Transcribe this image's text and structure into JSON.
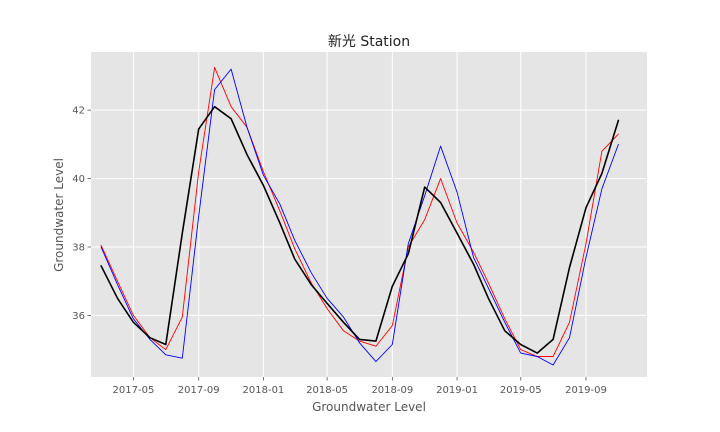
{
  "chart_data": {
    "type": "line",
    "title": "新光 Station",
    "xlabel": "Groundwater Level",
    "ylabel": "Groundwater Level",
    "x": [
      "2017-03",
      "2017-04",
      "2017-05",
      "2017-06",
      "2017-07",
      "2017-08",
      "2017-09",
      "2017-10",
      "2017-11",
      "2017-12",
      "2018-01",
      "2018-02",
      "2018-03",
      "2018-04",
      "2018-05",
      "2018-06",
      "2018-07",
      "2018-08",
      "2018-09",
      "2018-10",
      "2018-11",
      "2018-12",
      "2019-01",
      "2019-02",
      "2019-03",
      "2019-04",
      "2019-05",
      "2019-06",
      "2019-07",
      "2019-08",
      "2019-09",
      "2019-10",
      "2019-11"
    ],
    "xlim": [
      "2017-02-10",
      "2019-12-25"
    ],
    "ylim": [
      34.2,
      43.7
    ],
    "xticks": [
      "2017-05",
      "2017-09",
      "2018-01",
      "2018-05",
      "2018-09",
      "2019-01",
      "2019-05",
      "2019-09"
    ],
    "yticks": [
      36,
      38,
      40,
      42
    ],
    "grid": true,
    "legend": "none",
    "series": [
      {
        "color": "#ff0000",
        "width": 0.9,
        "values": [
          38.05,
          37.0,
          36.0,
          35.35,
          35.0,
          35.95,
          40.2,
          43.25,
          42.1,
          41.5,
          40.2,
          39.05,
          37.95,
          36.95,
          36.2,
          35.55,
          35.25,
          35.1,
          35.7,
          38.0,
          38.8,
          40.0,
          38.7,
          37.85,
          36.95,
          35.9,
          35.0,
          34.8,
          34.8,
          35.8,
          38.1,
          40.8,
          41.3
        ]
      },
      {
        "color": "#0000ff",
        "width": 0.9,
        "values": [
          38.0,
          36.9,
          35.9,
          35.3,
          34.85,
          34.75,
          38.9,
          42.6,
          43.2,
          41.5,
          40.1,
          39.25,
          38.2,
          37.25,
          36.5,
          35.95,
          35.2,
          34.65,
          35.15,
          38.1,
          39.5,
          40.95,
          39.6,
          37.7,
          36.8,
          35.8,
          34.9,
          34.8,
          34.55,
          35.35,
          37.7,
          39.7,
          41.0
        ]
      },
      {
        "color": "#000000",
        "width": 1.6,
        "values": [
          37.45,
          36.5,
          35.8,
          35.35,
          35.15,
          38.4,
          41.45,
          42.1,
          41.75,
          40.7,
          39.8,
          38.7,
          37.65,
          36.9,
          36.35,
          35.8,
          35.3,
          35.25,
          36.85,
          37.8,
          39.75,
          39.3,
          38.4,
          37.5,
          36.5,
          35.55,
          35.15,
          34.9,
          35.3,
          37.4,
          39.15,
          40.15,
          41.7
        ]
      }
    ]
  }
}
